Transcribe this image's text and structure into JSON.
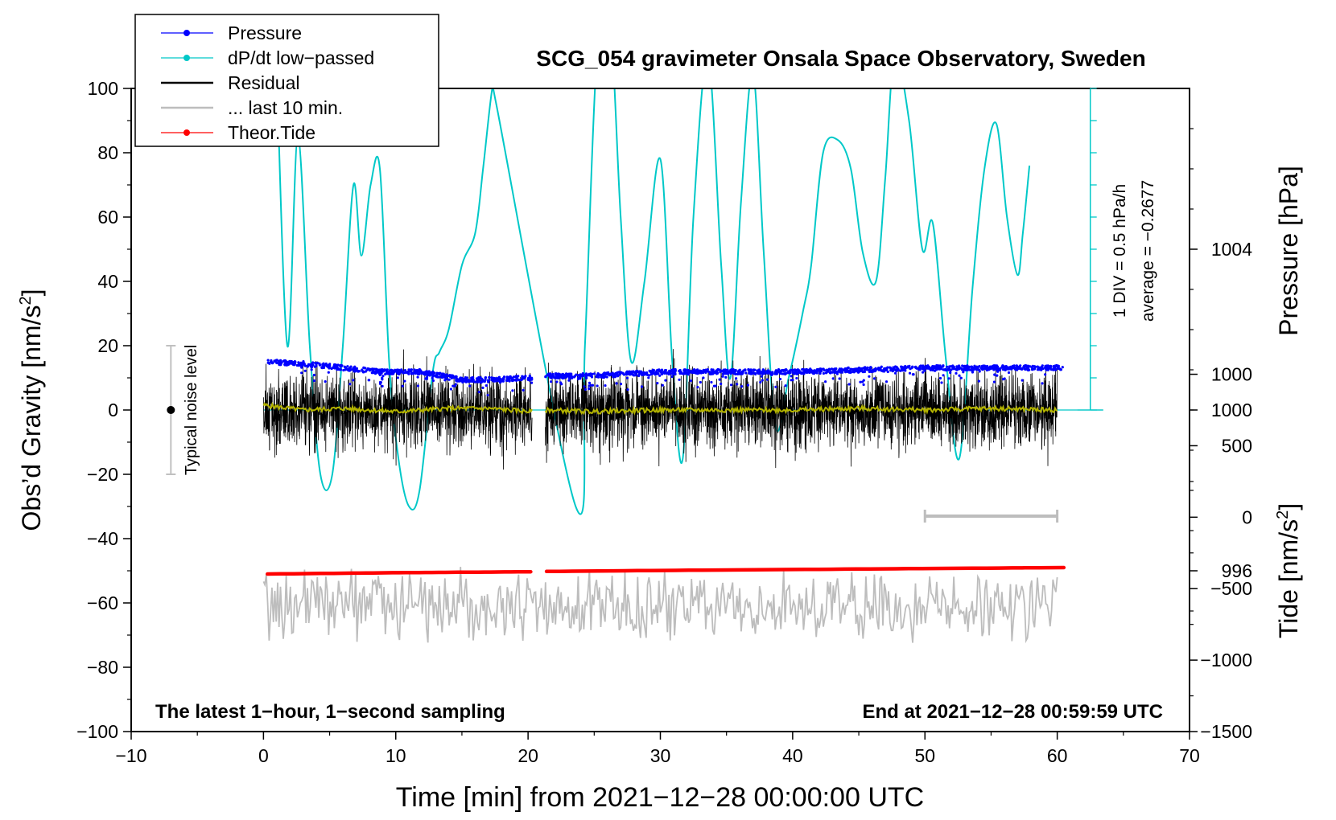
{
  "chart_data": {
    "type": "line",
    "title": "SCG_054 gravimeter Onsala Space Observatory, Sweden",
    "xlabel": "Time [min] from 2021−12−28 00:00:00 UTC",
    "ylabel": "Obs’d Gravity [nm/s",
    "ylabel_sup": "2",
    "ylabel_close": "]",
    "xlim": [
      -10,
      70
    ],
    "ylim": [
      -100,
      100
    ],
    "x_ticks": [
      -10,
      0,
      10,
      20,
      30,
      40,
      50,
      60,
      70
    ],
    "x_tick_labels": [
      "−10",
      "0",
      "10",
      "20",
      "30",
      "40",
      "50",
      "60",
      "70"
    ],
    "y_ticks": [
      -100,
      -80,
      -60,
      -40,
      -20,
      0,
      20,
      40,
      60,
      80,
      100
    ],
    "y_tick_labels": [
      "−100",
      "−80",
      "−60",
      "−40",
      "−20",
      "0",
      "20",
      "40",
      "60",
      "80",
      "100"
    ],
    "pressure_axis": {
      "label": "Pressure [hPa]",
      "ticks": [
        996,
        1000,
        1004
      ],
      "tick_labels": [
        "996",
        "1000",
        "1004"
      ],
      "range": [
        992,
        1008
      ]
    },
    "tide_axis": {
      "label": "Tide [nm/s",
      "label_sup": "2",
      "label_close": "]",
      "ticks": [
        -1500,
        -1000,
        -500,
        0,
        500,
        1000
      ],
      "tick_labels": [
        "−1500",
        "−1000",
        "−500",
        "0",
        "500",
        "1000"
      ],
      "range": [
        -1500,
        3000
      ]
    },
    "dpdt_scale": {
      "div_label": "1 DIV = 0.5 hPa/h",
      "average_label": "average = −0.2677"
    },
    "noise_bar": {
      "label": "Typical noise level",
      "x": -7,
      "center": 0,
      "range": [
        -20,
        20
      ]
    },
    "window_bar": {
      "x_range": [
        50,
        60
      ],
      "y": -33
    },
    "annotation_left": "The latest 1−hour, 1−second sampling",
    "annotation_right": "End at 2021−12−28 00:59:59 UTC",
    "gap": [
      20.3,
      21.3
    ],
    "legend": [
      {
        "label": "Pressure",
        "color": "#0000ff",
        "marker": true
      },
      {
        "label": "dP/dt low−passed",
        "color": "#00c8c8",
        "marker": true
      },
      {
        "label": "Residual",
        "color": "#000000",
        "marker": false
      },
      {
        "label": "... last 10 min.",
        "color": "#bdbdbd",
        "marker": false
      },
      {
        "label": "Theor.Tide",
        "color": "#ff0000",
        "marker": true
      }
    ],
    "series": [
      {
        "name": "Pressure",
        "color": "#0000ff",
        "axis": "pressure",
        "x": [
          0.3,
          3,
          6,
          9,
          12,
          15,
          17,
          20.2,
          21.3,
          25,
          30,
          35,
          40,
          45,
          50,
          55,
          58,
          60.5
        ],
        "y": [
          1001.2,
          1001.15,
          1001.05,
          1000.95,
          1000.95,
          1000.75,
          1000.75,
          1000.8,
          1000.85,
          1000.85,
          1000.95,
          1000.95,
          1000.95,
          1001.0,
          1001.05,
          1001.05,
          1001.05,
          1001.05
        ]
      },
      {
        "name": "dP/dt low−passed",
        "color": "#00c8c8",
        "axis": "left",
        "x": [
          0.9,
          1.8,
          2.6,
          3.5,
          4.3,
          5.2,
          6.0,
          6.8,
          7.4,
          8.1,
          8.8,
          9.5,
          10.2,
          11.0,
          11.8,
          12.8,
          13.3,
          14.0,
          15.0,
          16.0,
          16.6,
          17.3,
          17.6,
          23.6,
          24.3,
          25.2,
          26.2,
          27.0,
          27.8,
          28.8,
          30.0,
          30.9,
          31.7,
          32.5,
          33.6,
          34.6,
          35.3,
          36.1,
          37.0,
          37.8,
          38.7,
          39.7,
          40.8,
          41.4,
          42.3,
          43.4,
          44.4,
          45.3,
          46.3,
          47.0,
          47.7,
          48.8,
          49.8,
          50.6,
          51.6,
          52.6,
          53.6,
          54.5,
          55.4,
          56.2,
          57.0,
          57.4,
          57.9
        ],
        "y": [
          120,
          20,
          85,
          20,
          -20,
          -20,
          20,
          70,
          48,
          70,
          75,
          15,
          -15,
          -30,
          -25,
          12,
          18,
          25,
          45,
          55,
          75,
          100,
          95,
          -30,
          20,
          110,
          120,
          60,
          15,
          40,
          78,
          15,
          -15,
          60,
          110,
          45,
          10,
          65,
          105,
          50,
          -5,
          10,
          31,
          45,
          80,
          84,
          75,
          49,
          40,
          72,
          110,
          90,
          50,
          58,
          15,
          -15,
          38,
          75,
          89,
          60,
          42,
          55,
          76
        ]
      },
      {
        "name": "Residual",
        "color": "#000000",
        "axis": "left",
        "x_range": [
          0,
          60
        ],
        "envelope": 19
      },
      {
        "name": "Residual smoothed",
        "color": "#b4b400",
        "axis": "left",
        "x": [
          0,
          3,
          6,
          10,
          14,
          17,
          20.2,
          21.3,
          25,
          30,
          35,
          40,
          45,
          50,
          55,
          60
        ],
        "y": [
          1.5,
          0,
          0.5,
          -0.5,
          0.5,
          0.5,
          -0.5,
          0,
          -0.5,
          0,
          0,
          0,
          0.5,
          0,
          0.5,
          0
        ]
      },
      {
        "name": "... last 10 min.",
        "color": "#bdbdbd",
        "axis": "left",
        "x_range": [
          0,
          60
        ],
        "center": -61,
        "envelope": 13
      },
      {
        "name": "Theor.Tide",
        "color": "#ff0000",
        "axis": "left",
        "x": [
          0.3,
          10,
          20.2,
          21.3,
          30,
          40,
          50,
          60.5
        ],
        "y": [
          -51,
          -50.6,
          -50.3,
          -50.2,
          -49.9,
          -49.6,
          -49.3,
          -49
        ]
      }
    ]
  }
}
